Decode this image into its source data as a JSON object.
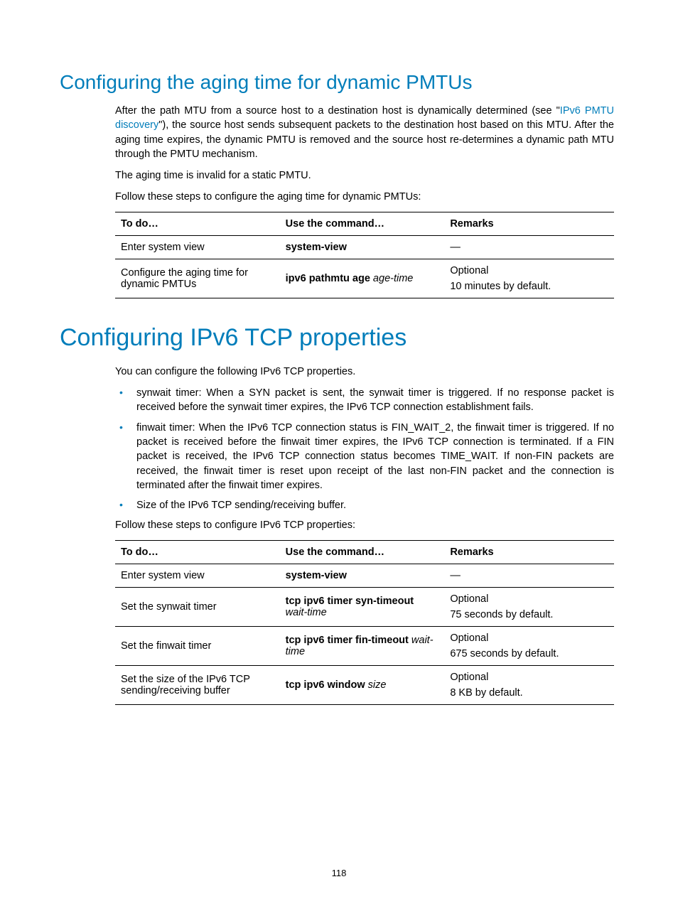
{
  "section1": {
    "heading": "Configuring the aging time for dynamic PMTUs",
    "para1_pre": "After the path MTU from a source host to a destination host is dynamically determined (see \"",
    "para1_link": "IPv6 PMTU discovery",
    "para1_post": "\"), the source host sends subsequent packets to the destination host based on this MTU. After the aging time expires, the dynamic PMTU is removed and the source host re-determines a dynamic path MTU through the PMTU mechanism.",
    "para2": "The aging time is invalid for a static PMTU.",
    "para3": "Follow these steps to configure the aging time for dynamic PMTUs:",
    "table": {
      "headers": {
        "c1": "To do…",
        "c2": "Use the command…",
        "c3": "Remarks"
      },
      "rows": [
        {
          "todo": "Enter system view",
          "cmd_b": "system-view",
          "cmd_i": "",
          "rem1": "—",
          "rem2": ""
        },
        {
          "todo": "Configure the aging time for dynamic PMTUs",
          "cmd_b": "ipv6 pathmtu age",
          "cmd_i": " age-time",
          "rem1": "Optional",
          "rem2": "10 minutes by default."
        }
      ]
    }
  },
  "section2": {
    "heading": "Configuring IPv6 TCP properties",
    "para1": "You can configure the following IPv6 TCP properties.",
    "bullets": [
      "synwait timer: When a SYN packet is sent, the synwait timer is triggered. If no response packet is received before the synwait timer expires, the IPv6 TCP connection establishment fails.",
      "finwait timer: When the IPv6 TCP connection status is FIN_WAIT_2, the finwait timer is triggered. If no packet is received before the finwait timer expires, the IPv6 TCP connection is terminated. If a FIN packet is received, the IPv6 TCP connection status becomes TIME_WAIT. If non-FIN packets are received, the finwait timer is reset upon receipt of the last non-FIN packet and the connection is terminated after the finwait timer expires.",
      "Size of the IPv6 TCP sending/receiving buffer."
    ],
    "para2": "Follow these steps to configure IPv6 TCP properties:",
    "table": {
      "headers": {
        "c1": "To do…",
        "c2": "Use the command…",
        "c3": "Remarks"
      },
      "rows": [
        {
          "todo": "Enter system view",
          "cmd_b": "system-view",
          "cmd_i": "",
          "rem1": "—",
          "rem2": ""
        },
        {
          "todo": "Set the synwait timer",
          "cmd_b": "tcp ipv6 timer syn-timeout",
          "cmd_i": " wait-time",
          "cmd_break": true,
          "rem1": "Optional",
          "rem2": "75 seconds by default."
        },
        {
          "todo": "Set the finwait timer",
          "cmd_b": "tcp ipv6 timer fin-timeout",
          "cmd_i": " wait-time",
          "rem1": "Optional",
          "rem2": "675 seconds by default."
        },
        {
          "todo": "Set the size of the IPv6 TCP sending/receiving buffer",
          "cmd_b": "tcp ipv6 window",
          "cmd_i": " size",
          "rem1": "Optional",
          "rem2": "8 KB by default."
        }
      ]
    }
  },
  "page_number": "118",
  "colors": {
    "accent": "#007dba",
    "text": "#000000",
    "bg": "#ffffff"
  }
}
